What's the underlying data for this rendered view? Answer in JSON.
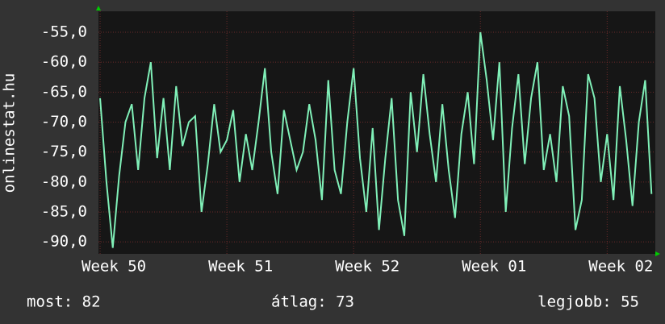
{
  "chart_data": {
    "type": "line",
    "y_label": "onlinestat.hu",
    "x": [
      0,
      0.05,
      0.1,
      0.15,
      0.2,
      0.25,
      0.3,
      0.35,
      0.4,
      0.45,
      0.5,
      0.55,
      0.6,
      0.65,
      0.7,
      0.75,
      0.8,
      0.85,
      0.9,
      0.95,
      1,
      1.05,
      1.1,
      1.15,
      1.2,
      1.25,
      1.3,
      1.35,
      1.4,
      1.45,
      1.5,
      1.55,
      1.6,
      1.65,
      1.7,
      1.75,
      1.8,
      1.85,
      1.9,
      1.95,
      2,
      2.05,
      2.1,
      2.15,
      2.2,
      2.25,
      2.3,
      2.35,
      2.4,
      2.45,
      2.5,
      2.55,
      2.6,
      2.65,
      2.7,
      2.75,
      2.8,
      2.85,
      2.9,
      2.95,
      3,
      3.05,
      3.1,
      3.15,
      3.2,
      3.25,
      3.3,
      3.35,
      3.4,
      3.45,
      3.5,
      3.55,
      3.6,
      3.65,
      3.7,
      3.75,
      3.8,
      3.85,
      3.9,
      3.95,
      4,
      4.05,
      4.1,
      4.15,
      4.2,
      4.25,
      4.3,
      4.35
    ],
    "series": [
      {
        "color": "#80f0b8",
        "values": [
          -66,
          -80,
          -91,
          -79,
          -70,
          -67,
          -78,
          -66,
          -60,
          -76,
          -66,
          -78,
          -64,
          -74,
          -70,
          -69,
          -85,
          -77,
          -67,
          -75,
          -73,
          -68,
          -80,
          -72,
          -78,
          -70,
          -61,
          -75,
          -82,
          -68,
          -73,
          -78,
          -75,
          -67,
          -73,
          -83,
          -63,
          -78,
          -82,
          -70,
          -61,
          -76,
          -85,
          -71,
          -88,
          -76,
          -66,
          -83,
          -89,
          -65,
          -75,
          -62,
          -72,
          -80,
          -67,
          -78,
          -86,
          -72,
          -65,
          -77,
          -55,
          -63,
          -73,
          -60,
          -85,
          -71,
          -62,
          -77,
          -66,
          -60,
          -78,
          -72,
          -80,
          -64,
          -69,
          -88,
          -83,
          -62,
          -66,
          -80,
          -72,
          -83,
          -64,
          -73,
          -84,
          -70,
          -63,
          -82
        ]
      }
    ],
    "xlim": [
      -0.013,
      4.38
    ],
    "ylim": [
      -92,
      -51.5
    ],
    "xticks": [
      {
        "value": 0,
        "label": "Week 50"
      },
      {
        "value": 1,
        "label": "Week 51"
      },
      {
        "value": 2,
        "label": "Week 52"
      },
      {
        "value": 3,
        "label": "Week 01"
      },
      {
        "value": 4,
        "label": "Week 02"
      }
    ],
    "yticks": [
      {
        "value": -55,
        "label": "-55,0"
      },
      {
        "value": -60,
        "label": "-60,0"
      },
      {
        "value": -65,
        "label": "-65,0"
      },
      {
        "value": -70,
        "label": "-70,0"
      },
      {
        "value": -75,
        "label": "-75,0"
      },
      {
        "value": -80,
        "label": "-80,0"
      },
      {
        "value": -85,
        "label": "-85,0"
      },
      {
        "value": -90,
        "label": "-90,0"
      }
    ],
    "grid": true,
    "footer": [
      "most: 82",
      "átlag: 73",
      "legjobb: 55"
    ]
  }
}
